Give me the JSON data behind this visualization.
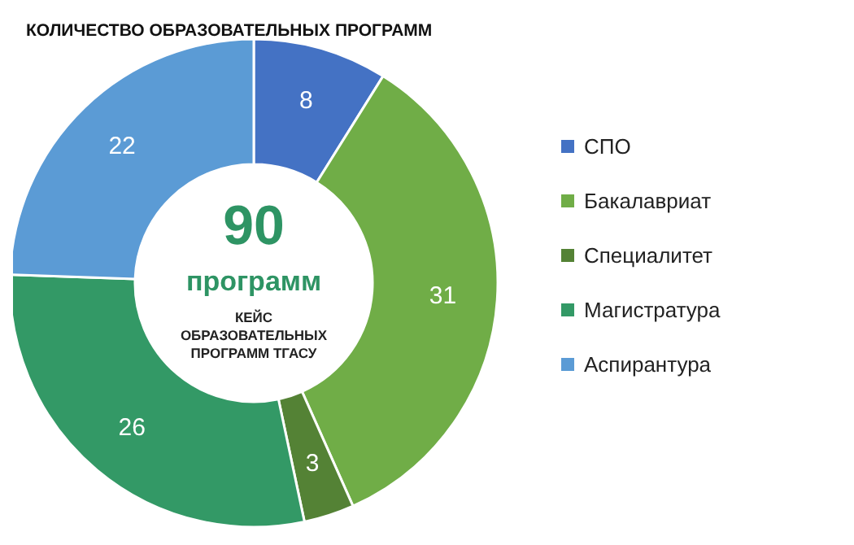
{
  "chart_data": {
    "type": "donut",
    "title": "КОЛИЧЕСТВО ОБРАЗОВАТЕЛЬНЫХ ПРОГРАММ",
    "categories": [
      "СПО",
      "Бакалавриат",
      "Специалитет",
      "Магистратура",
      "Аспирантура"
    ],
    "values": [
      8,
      31,
      3,
      26,
      22
    ],
    "colors": [
      "#4472c4",
      "#70ad47",
      "#548235",
      "#339966",
      "#5b9bd5"
    ],
    "data_labels": true,
    "legend": "right",
    "annotations": [
      "90",
      "программ",
      "КЕЙС ОБРАЗОВАТЕЛЬНЫХ ПРОГРАММ ТГАСУ"
    ]
  }
}
